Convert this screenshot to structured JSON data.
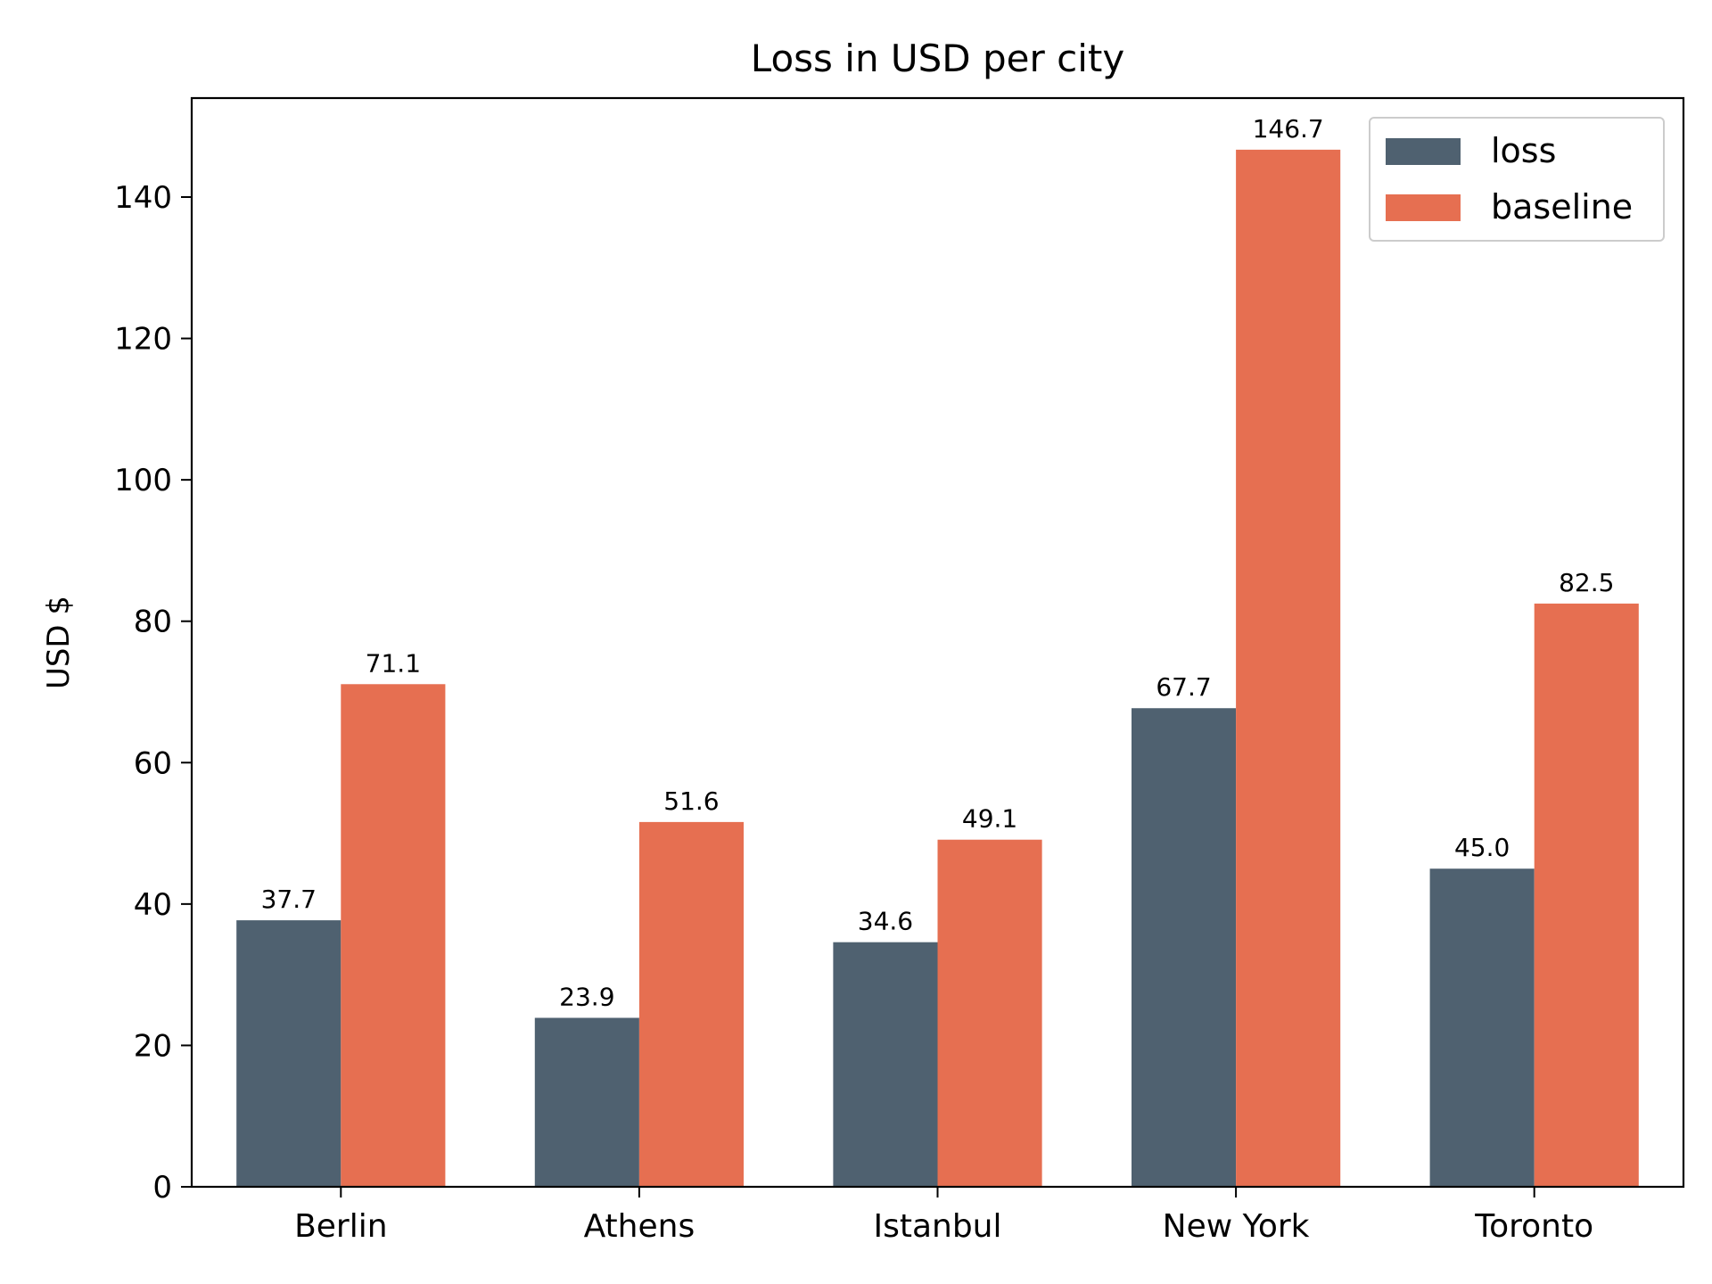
{
  "chart_data": {
    "type": "bar",
    "title": "Loss in USD per city",
    "xlabel": "",
    "ylabel": "USD $",
    "categories": [
      "Berlin",
      "Athens",
      "Istanbul",
      "New York",
      "Toronto"
    ],
    "series": [
      {
        "name": "loss",
        "color": "#4f6170",
        "values": [
          37.7,
          23.9,
          34.6,
          67.7,
          45.0
        ],
        "labels": [
          "37.7",
          "23.9",
          "34.6",
          "67.7",
          "45.0"
        ]
      },
      {
        "name": "baseline",
        "color": "#e66f51",
        "values": [
          71.1,
          51.6,
          49.1,
          146.7,
          82.5
        ],
        "labels": [
          "71.1",
          "51.6",
          "49.1",
          "146.7",
          "82.5"
        ]
      }
    ],
    "ylim": [
      0,
      154
    ],
    "yticks": [
      0,
      20,
      40,
      60,
      80,
      100,
      120,
      140
    ],
    "ytick_labels": [
      "0",
      "20",
      "40",
      "60",
      "80",
      "100",
      "120",
      "140"
    ],
    "grid": false,
    "legend_position": "top-right"
  }
}
